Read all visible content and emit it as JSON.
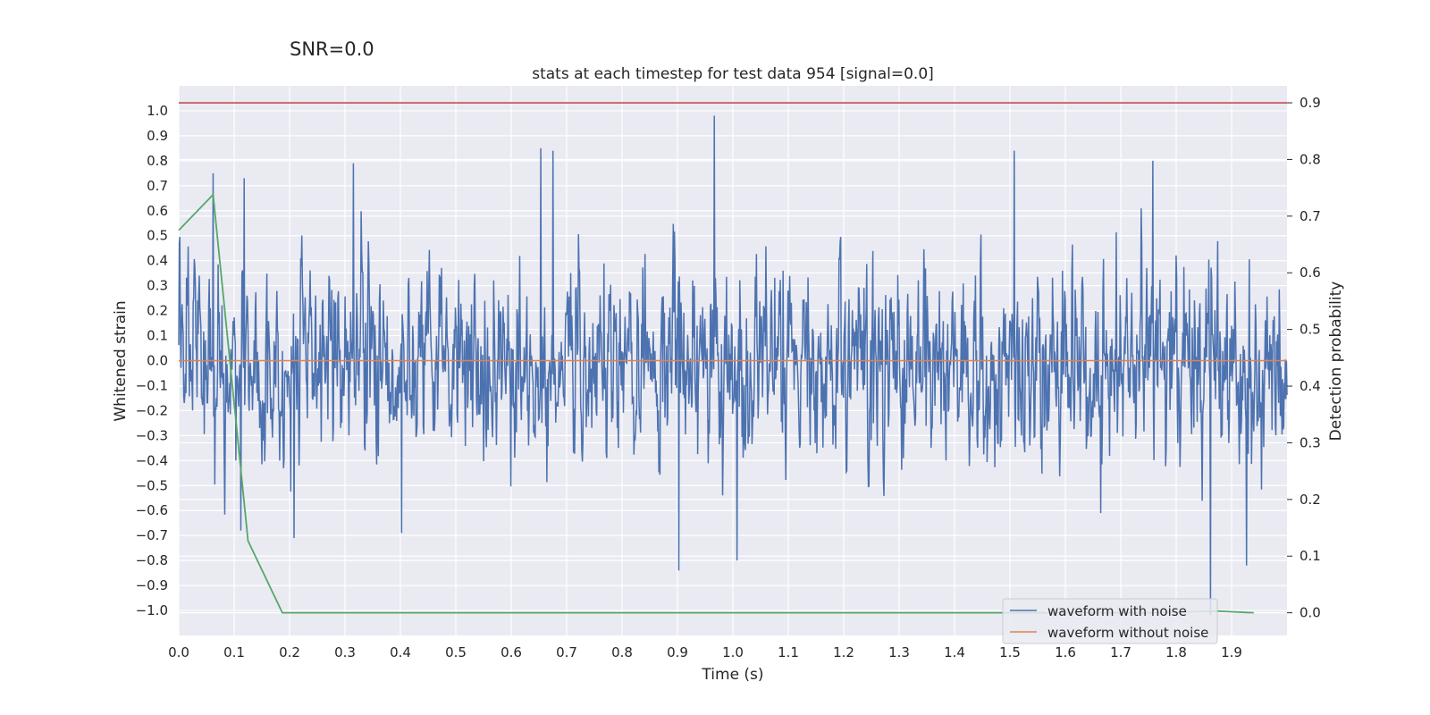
{
  "chart_data": {
    "type": "line",
    "suptitle": "SNR=0.0",
    "title": "stats at each timestep for test data 954 [signal=0.0]",
    "xlabel": "Time (s)",
    "ylabel": "Whitened strain",
    "ylabel_right": "Detection probability",
    "xlim": [
      0.0,
      2.0
    ],
    "ylim": [
      -1.1,
      1.1
    ],
    "ylim_right": [
      -0.04,
      0.93
    ],
    "x_ticks": [
      "0.0",
      "0.1",
      "0.2",
      "0.3",
      "0.4",
      "0.5",
      "0.6",
      "0.7",
      "0.8",
      "0.9",
      "1.0",
      "1.1",
      "1.2",
      "1.3",
      "1.4",
      "1.5",
      "1.6",
      "1.7",
      "1.8",
      "1.9"
    ],
    "y_ticks": [
      "1.0",
      "0.9",
      "0.8",
      "0.7",
      "0.6",
      "0.5",
      "0.4",
      "0.3",
      "0.2",
      "0.1",
      "0.0",
      "−0.1",
      "−0.2",
      "−0.3",
      "−0.4",
      "−0.5",
      "−0.6",
      "−0.7",
      "−0.8",
      "−0.9",
      "−1.0"
    ],
    "y_ticks_right": [
      "0.9",
      "0.8",
      "0.7",
      "0.6",
      "0.5",
      "0.4",
      "0.3",
      "0.2",
      "0.1",
      "0.0"
    ],
    "legend": [
      "waveform with noise",
      "waveform without noise"
    ],
    "legend_position": "lower-right",
    "colors": {
      "noise": "#4c72b0",
      "clean": "#dd8452",
      "prob": "#55a868",
      "threshold": "#c44e52"
    },
    "series": [
      {
        "name": "waveform with noise",
        "axis": "left",
        "generated": "noise",
        "sample_count": 2000,
        "rms": 0.19,
        "peaks": [
          {
            "x": 0.062,
            "y": 0.75
          },
          {
            "x": 0.112,
            "y": -0.68
          },
          {
            "x": 0.118,
            "y": 0.73
          },
          {
            "x": 0.208,
            "y": -0.71
          },
          {
            "x": 0.315,
            "y": 0.79
          },
          {
            "x": 0.402,
            "y": -0.69
          },
          {
            "x": 0.653,
            "y": 0.85
          },
          {
            "x": 0.675,
            "y": 0.84
          },
          {
            "x": 0.902,
            "y": -0.84
          },
          {
            "x": 0.966,
            "y": 0.98
          },
          {
            "x": 1.008,
            "y": -0.8
          },
          {
            "x": 1.508,
            "y": 0.84
          },
          {
            "x": 1.758,
            "y": 0.8
          },
          {
            "x": 1.862,
            "y": -1.02
          },
          {
            "x": 1.927,
            "y": -0.82
          }
        ]
      },
      {
        "name": "waveform without noise",
        "axis": "left",
        "x": [
          0.0,
          2.0
        ],
        "values": [
          0.0,
          0.0
        ]
      },
      {
        "name": "detection probability",
        "axis": "right",
        "x": [
          0.0,
          0.062,
          0.125,
          0.187,
          0.25,
          0.5,
          1.0,
          1.5,
          1.75,
          1.875,
          1.94
        ],
        "values": [
          0.675,
          0.738,
          0.127,
          0.0,
          0.0,
          0.0,
          0.0,
          0.0,
          0.0,
          0.003,
          0.0
        ]
      },
      {
        "name": "threshold",
        "axis": "right",
        "x": [
          0.0,
          2.0
        ],
        "values": [
          0.9,
          0.9
        ]
      }
    ]
  }
}
